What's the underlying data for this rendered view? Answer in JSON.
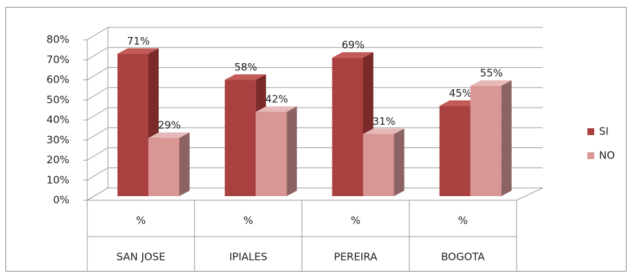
{
  "chart_data": {
    "type": "bar3d",
    "categories": [
      "SAN JOSE",
      "IPIALES",
      "PEREIRA",
      "BOGOTA"
    ],
    "category_units": [
      "%",
      "%",
      "%",
      "%"
    ],
    "series": [
      {
        "name": "SI",
        "color": "#a8413f",
        "values": [
          71,
          58,
          69,
          45
        ],
        "value_labels": [
          "71%",
          "58%",
          "69%",
          "45%"
        ]
      },
      {
        "name": "NO",
        "color": "#d99694",
        "values": [
          29,
          42,
          31,
          55
        ],
        "value_labels": [
          "29%",
          "42%",
          "31%",
          "55%"
        ]
      }
    ],
    "ylim": [
      0,
      80
    ],
    "yticks": [
      {
        "value": 0,
        "label": "0%"
      },
      {
        "value": 10,
        "label": "10%"
      },
      {
        "value": 20,
        "label": "20%"
      },
      {
        "value": 30,
        "label": "30%"
      },
      {
        "value": 40,
        "label": "40%"
      },
      {
        "value": 50,
        "label": "50%"
      },
      {
        "value": 60,
        "label": "60%"
      },
      {
        "value": 70,
        "label": "70%"
      },
      {
        "value": 80,
        "label": "80%"
      }
    ],
    "grid": true,
    "legend": "right"
  }
}
